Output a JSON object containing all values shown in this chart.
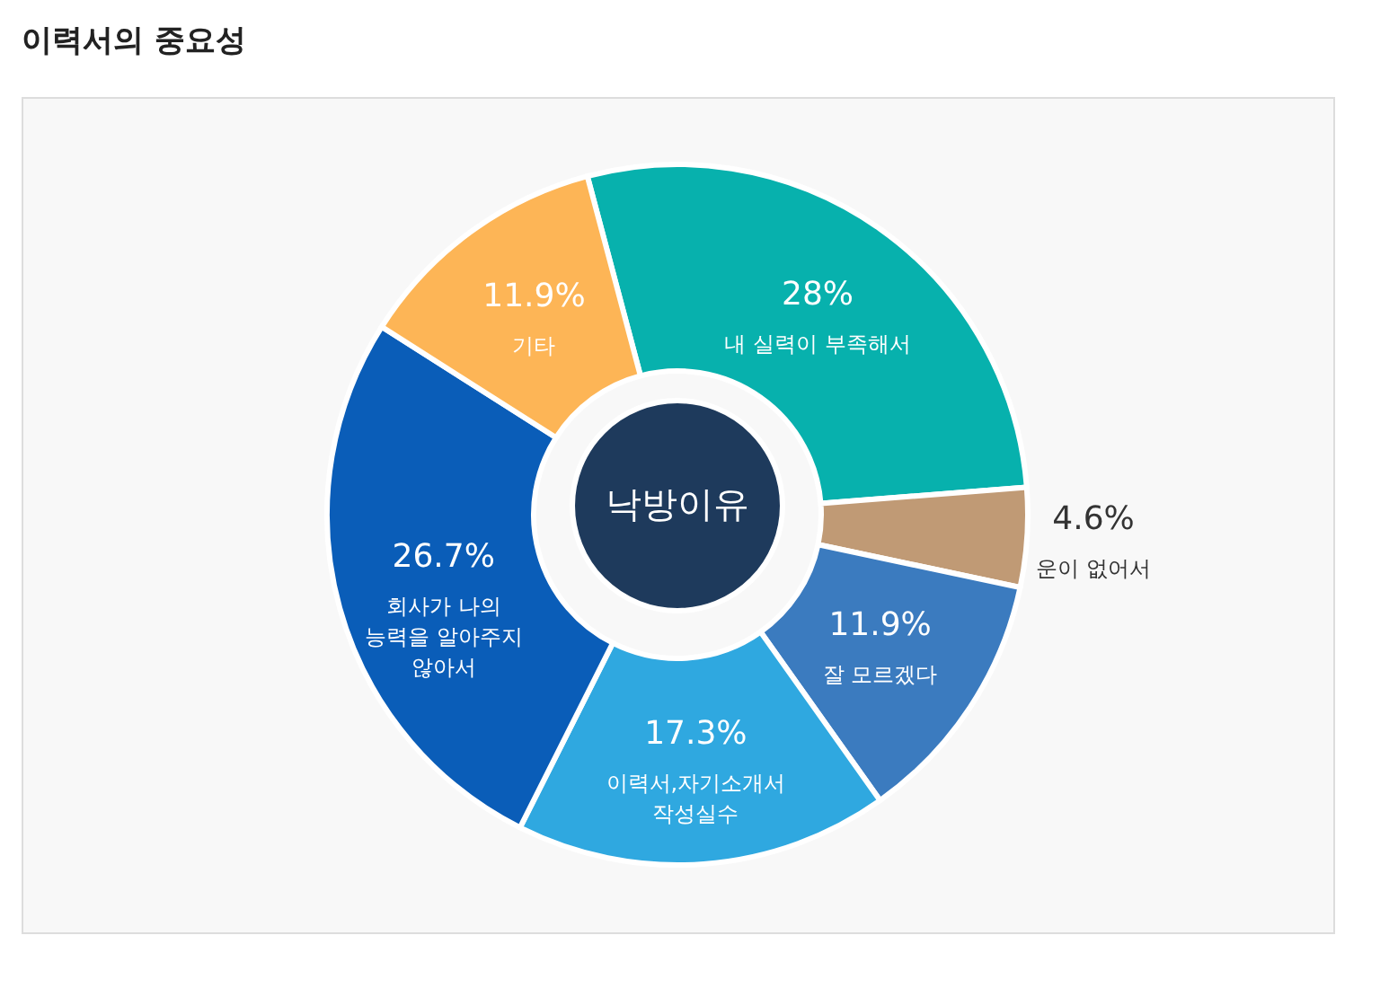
{
  "chart_data": {
    "type": "donut",
    "title": "이력서의 중요성",
    "categories": [
      "내 실력이 부족해서",
      "운이 없어서",
      "잘 모르겠다",
      "이력서,자기소개서 작성실수",
      "회사가 나의 능력을 알아주지 않아서",
      "기타"
    ],
    "values": [
      28,
      4.6,
      11.9,
      17.3,
      26.7,
      11.9
    ],
    "colors": [
      "#07b1ad",
      "#c09a75",
      "#3b7bbf",
      "#2fa8e0",
      "#0a5db8",
      "#fdb556"
    ],
    "value_labels": [
      "28%",
      "4.6%",
      "11.9%",
      "17.3%",
      "26.7%",
      "11.9%"
    ],
    "annotations": [
      "낙방이유"
    ]
  }
}
